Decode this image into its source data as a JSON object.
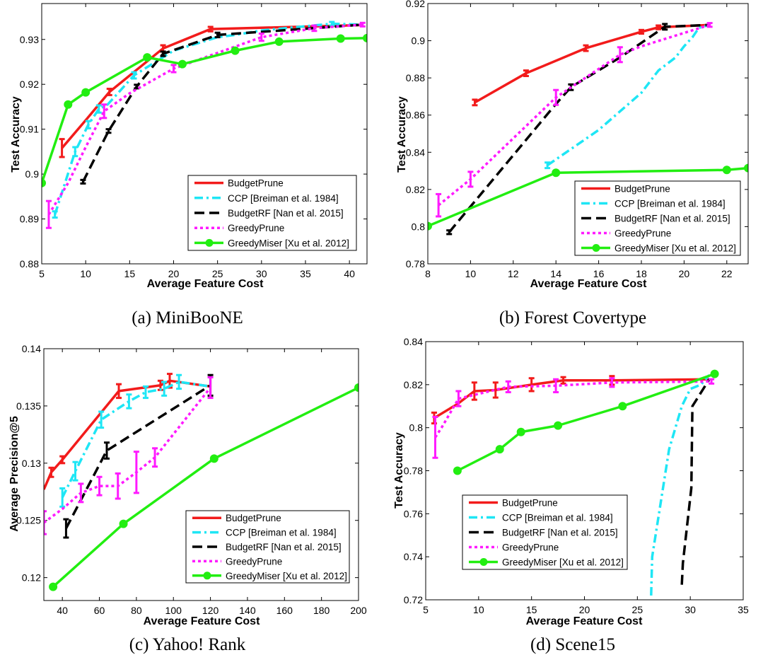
{
  "legend_labels": [
    "BudgetPrune",
    "CCP [Breiman et al. 1984]",
    "BudgetRF [Nan et al. 2015]",
    "GreedyPrune",
    "GreedyMiser [Xu et al. 2012]"
  ],
  "series_colors": [
    "#f21b1b",
    "#1ee6f5",
    "#000000",
    "#ff1aff",
    "#22ee11"
  ],
  "chart_data": [
    {
      "type": "line",
      "caption": "(a) MiniBooNE",
      "xlabel": "Average Feature Cost",
      "ylabel": "Test Accuracy",
      "xlim": [
        5,
        42
      ],
      "ylim": [
        0.88,
        0.938
      ],
      "xticks": [
        "5",
        "10",
        "15",
        "20",
        "25",
        "30",
        "35",
        "40"
      ],
      "yticks": [
        "0.88",
        "0.89",
        "0.9",
        "0.91",
        "0.92",
        "0.93"
      ],
      "legend": "bottom-right",
      "series": [
        {
          "name": "BudgetPrune",
          "points": [
            [
              7.3,
              0.9058,
              0.002
            ],
            [
              10,
              0.912,
              0
            ],
            [
              12.7,
              0.9183,
              0.0007
            ],
            [
              18.8,
              0.928,
              0.0007
            ],
            [
              24.2,
              0.9323,
              0.0005
            ],
            [
              41.5,
              0.9332,
              0
            ]
          ]
        },
        {
          "name": "CCP [Breiman et al. 1984]",
          "points": [
            [
              6.5,
              0.891,
              0.0007
            ],
            [
              8.8,
              0.905,
              0.001
            ],
            [
              10.3,
              0.911,
              0.0008
            ],
            [
              11.5,
              0.9145,
              0.0008
            ],
            [
              12.5,
              0.9155,
              0
            ],
            [
              15.5,
              0.922,
              0.0007
            ],
            [
              20,
              0.9275,
              0
            ],
            [
              25,
              0.9305,
              0
            ],
            [
              27,
              0.931,
              0
            ],
            [
              30,
              0.932,
              0
            ],
            [
              38,
              0.9335,
              0.0004
            ],
            [
              41.5,
              0.9333,
              0
            ]
          ]
        },
        {
          "name": "BudgetRF [Nan et al. 2015]",
          "points": [
            [
              9.7,
              0.8983,
              0.0004
            ],
            [
              12.6,
              0.9096,
              0.0004
            ],
            [
              15.8,
              0.9195,
              0.0004
            ],
            [
              18.8,
              0.9268,
              0.0005
            ],
            [
              25,
              0.931,
              0.0005
            ],
            [
              41.5,
              0.9333,
              0
            ]
          ]
        },
        {
          "name": "GreedyPrune",
          "points": [
            [
              5.8,
              0.891,
              0.003
            ],
            [
              8,
              0.898,
              0
            ],
            [
              10,
              0.906,
              0
            ],
            [
              12.1,
              0.914,
              0.0015
            ],
            [
              15,
              0.918,
              0
            ],
            [
              20,
              0.9235,
              0.0008
            ],
            [
              30,
              0.9305,
              0.0008
            ],
            [
              36,
              0.9325,
              0.0006
            ],
            [
              41.5,
              0.9333,
              0.0004
            ]
          ]
        },
        {
          "name": "GreedyMiser [Xu et al. 2012]",
          "points": [
            [
              5,
              0.898,
              0
            ],
            [
              8,
              0.9155,
              0
            ],
            [
              10,
              0.9182,
              0
            ],
            [
              17,
              0.926,
              0
            ],
            [
              21,
              0.9245,
              0
            ],
            [
              27,
              0.9275,
              0
            ],
            [
              32,
              0.9295,
              0
            ],
            [
              39,
              0.9302,
              0
            ],
            [
              42,
              0.9303,
              0
            ]
          ]
        }
      ]
    },
    {
      "type": "line",
      "caption": "(b) Forest Covertype",
      "xlabel": "Average Feature Cost",
      "ylabel": "Test Accuracy",
      "xlim": [
        8,
        23
      ],
      "ylim": [
        0.78,
        0.92
      ],
      "xticks": [
        "8",
        "10",
        "12",
        "14",
        "16",
        "18",
        "20",
        "22"
      ],
      "yticks": [
        "0.78",
        "0.8",
        "0.82",
        "0.84",
        "0.86",
        "0.88",
        "0.9",
        "0.92"
      ],
      "legend": "bottom-right",
      "series": [
        {
          "name": "BudgetPrune",
          "points": [
            [
              10.2,
              0.8668,
              0.0015
            ],
            [
              12.6,
              0.8825,
              0.0015
            ],
            [
              15.4,
              0.896,
              0.0015
            ],
            [
              18,
              0.9048,
              0.001
            ],
            [
              18.8,
              0.9072,
              0.001
            ],
            [
              21.2,
              0.9085,
              0
            ]
          ]
        },
        {
          "name": "CCP [Breiman et al. 1984]",
          "points": [
            [
              13.6,
              0.833,
              0.0015
            ],
            [
              16,
              0.852,
              0
            ],
            [
              18,
              0.872,
              0
            ],
            [
              18.8,
              0.884,
              0
            ],
            [
              19.6,
              0.891,
              0
            ],
            [
              20,
              0.897,
              0
            ],
            [
              20.4,
              0.902,
              0
            ],
            [
              20.7,
              0.907,
              0
            ],
            [
              21.2,
              0.9085,
              0
            ]
          ]
        },
        {
          "name": "BudgetRF [Nan et al. 2015]",
          "points": [
            [
              9,
              0.797,
              0.001
            ],
            [
              14,
              0.866,
              0
            ],
            [
              14.7,
              0.875,
              0.0015
            ],
            [
              17,
              0.891,
              0
            ],
            [
              19.1,
              0.9075,
              0.0015
            ],
            [
              21.2,
              0.9085,
              0
            ]
          ]
        },
        {
          "name": "GreedyPrune",
          "points": [
            [
              8.5,
              0.8115,
              0.006
            ],
            [
              10,
              0.8255,
              0.004
            ],
            [
              14,
              0.8695,
              0.004
            ],
            [
              17,
              0.8925,
              0.004
            ],
            [
              18,
              0.897,
              0
            ],
            [
              21.2,
              0.9085,
              0.001
            ]
          ]
        },
        {
          "name": "GreedyMiser [Xu et al. 2012]",
          "points": [
            [
              8,
              0.8003,
              0
            ],
            [
              14,
              0.829,
              0
            ],
            [
              22,
              0.8305,
              0
            ],
            [
              23,
              0.8315,
              0
            ]
          ]
        }
      ]
    },
    {
      "type": "line",
      "caption": "(c) Yahoo! Rank",
      "xlabel": "Average Feature Cost",
      "ylabel": "Average Precision@5",
      "xlim": [
        30,
        200
      ],
      "ylim": [
        0.118,
        0.14
      ],
      "xticks": [
        "40",
        "60",
        "80",
        "100",
        "120",
        "140",
        "160",
        "180",
        "200"
      ],
      "yticks": [
        "0.12",
        "0.125",
        "0.13",
        "0.135",
        "0.14"
      ],
      "legend": "bottom-right",
      "series": [
        {
          "name": "BudgetPrune",
          "points": [
            [
              30,
              0.1277,
              0
            ],
            [
              34,
              0.1292,
              0.0004
            ],
            [
              40,
              0.1303,
              0.0003
            ],
            [
              70.5,
              0.1363,
              0.0006
            ],
            [
              93,
              0.1368,
              0.0004
            ],
            [
              98,
              0.1372,
              0.0006
            ],
            [
              120,
              0.1367,
              0
            ]
          ]
        },
        {
          "name": "CCP [Breiman et al. 1984]",
          "points": [
            [
              40,
              0.127,
              0.0008
            ],
            [
              47,
              0.1293,
              0.0008
            ],
            [
              61,
              0.1338,
              0.0007
            ],
            [
              76,
              0.1354,
              0.0006
            ],
            [
              85,
              0.1362,
              0.0005
            ],
            [
              95,
              0.1365,
              0.0006
            ],
            [
              103,
              0.1371,
              0.0006
            ],
            [
              120,
              0.1367,
              0
            ]
          ]
        },
        {
          "name": "BudgetRF [Nan et al. 2015]",
          "points": [
            [
              42,
              0.1243,
              0.0008
            ],
            [
              64,
              0.1311,
              0.0007
            ],
            [
              120,
              0.1368,
              0.0009
            ]
          ]
        },
        {
          "name": "GreedyPrune",
          "points": [
            [
              30,
              0.1248,
              0.001
            ],
            [
              40,
              0.126,
              0
            ],
            [
              50,
              0.1274,
              0.0008
            ],
            [
              60,
              0.128,
              0.0008
            ],
            [
              70,
              0.128,
              0.0011
            ],
            [
              80,
              0.1292,
              0.0018
            ],
            [
              90,
              0.1305,
              0.0008
            ],
            [
              120,
              0.1366,
              0.0009
            ]
          ]
        },
        {
          "name": "GreedyMiser [Xu et al. 2012]",
          "points": [
            [
              35,
              0.1192,
              0
            ],
            [
              73,
              0.1247,
              0
            ],
            [
              122,
              0.1304,
              0
            ],
            [
              200,
              0.1366,
              0
            ]
          ]
        }
      ]
    },
    {
      "type": "line",
      "caption": "(d) Scene15",
      "xlabel": "Average Feature Cost",
      "ylabel": "Test Accuracy",
      "xlim": [
        5,
        35
      ],
      "ylim": [
        0.72,
        0.84
      ],
      "xticks": [
        "5",
        "10",
        "15",
        "20",
        "25",
        "30",
        "35"
      ],
      "yticks": [
        "0.72",
        "0.74",
        "0.76",
        "0.78",
        "0.8",
        "0.82",
        "0.84"
      ],
      "legend": "bottom-left",
      "series": [
        {
          "name": "BudgetPrune",
          "points": [
            [
              5.8,
              0.8045,
              0.0025
            ],
            [
              8,
              0.811,
              0
            ],
            [
              9.6,
              0.817,
              0.004
            ],
            [
              11.6,
              0.8175,
              0.0035
            ],
            [
              15,
              0.82,
              0.003
            ],
            [
              18,
              0.822,
              0.0015
            ],
            [
              22.6,
              0.822,
              0.002
            ],
            [
              31.8,
              0.8225,
              0
            ]
          ]
        },
        {
          "name": "CCP [Breiman et al. 1984]",
          "points": [
            [
              26.3,
              0.722,
              0
            ],
            [
              26.4,
              0.74,
              0
            ],
            [
              28,
              0.79,
              0
            ],
            [
              29.2,
              0.81,
              0
            ],
            [
              30,
              0.818,
              0
            ],
            [
              31,
              0.82,
              0
            ],
            [
              31.8,
              0.8245,
              0
            ]
          ]
        },
        {
          "name": "BudgetRF [Nan et al. 2015]",
          "points": [
            [
              29.2,
              0.727,
              0
            ],
            [
              29.3,
              0.737,
              0
            ],
            [
              30.1,
              0.772,
              0
            ],
            [
              30.2,
              0.81,
              0
            ],
            [
              31.8,
              0.8225,
              0
            ]
          ]
        },
        {
          "name": "GreedyPrune",
          "points": [
            [
              5.9,
              0.7955,
              0.0095
            ],
            [
              6.5,
              0.8,
              0
            ],
            [
              8.1,
              0.8135,
              0.0035
            ],
            [
              12.8,
              0.819,
              0.0025
            ],
            [
              17.3,
              0.8195,
              0.003
            ],
            [
              22.6,
              0.821,
              0.002
            ],
            [
              32,
              0.8215,
              0.001
            ]
          ]
        },
        {
          "name": "GreedyMiser [Xu et al. 2012]",
          "points": [
            [
              8,
              0.78,
              0
            ],
            [
              12,
              0.79,
              0
            ],
            [
              14,
              0.798,
              0
            ],
            [
              17.5,
              0.801,
              0
            ],
            [
              23.6,
              0.81,
              0
            ],
            [
              32.3,
              0.825,
              0
            ]
          ]
        }
      ]
    }
  ]
}
